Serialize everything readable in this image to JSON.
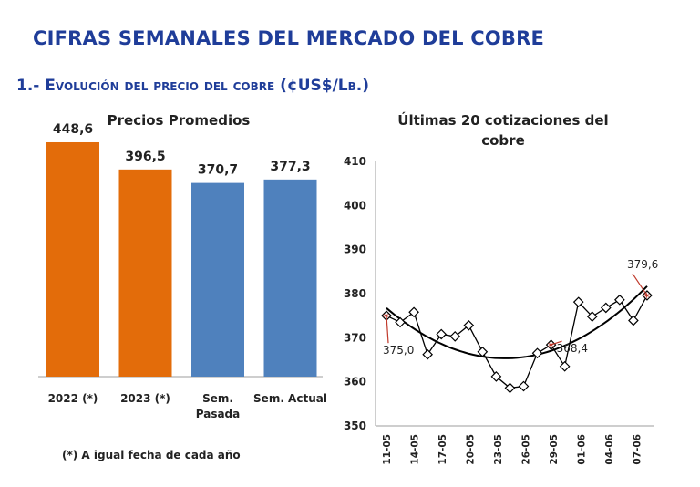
{
  "header": {
    "title": "CIFRAS SEMANALES DEL MERCADO DEL COBRE",
    "section": "1.- Evolución del precio del cobre (¢US$/Lb.)"
  },
  "footnote": "(*) A igual fecha de cada año",
  "colors": {
    "title": "#1f3d99",
    "orange": "#e36c0a",
    "blue": "#4f81bd",
    "line": "#000000",
    "marker_fill": "#ffffff",
    "highlight": "#c0392b"
  },
  "chart_data": [
    {
      "type": "bar",
      "title": "Precios Promedios",
      "categories": [
        "2022 (*)",
        "2023 (*)",
        "Sem. Pasada",
        "Sem. Actual"
      ],
      "category_lines": [
        [
          "2022 (*)"
        ],
        [
          "2023 (*)"
        ],
        [
          "Sem.",
          "Pasada"
        ],
        [
          "Sem. Actual"
        ]
      ],
      "values": [
        448.6,
        396.5,
        370.7,
        377.3
      ],
      "value_labels": [
        "448,6",
        "396,5",
        "370,7",
        "377,3"
      ],
      "bar_colors": [
        "#e36c0a",
        "#e36c0a",
        "#4f81bd",
        "#4f81bd"
      ],
      "ylim": [
        0,
        480
      ],
      "xlabel": "",
      "ylabel": ""
    },
    {
      "type": "line",
      "title": "Últimas 20 cotizaciones del cobre",
      "title_lines": [
        "Últimas 20 cotizaciones del",
        "cobre"
      ],
      "ylim": [
        350,
        410
      ],
      "yticks": [
        350,
        360,
        370,
        380,
        390,
        400,
        410
      ],
      "xtick_labels": [
        "11-05",
        "14-05",
        "17-05",
        "20-05",
        "23-05",
        "26-05",
        "29-05",
        "01-06",
        "04-06",
        "07-06"
      ],
      "series": [
        {
          "values": [
            375.0,
            373.5,
            375.8,
            366.2,
            370.8,
            370.3,
            372.8,
            366.8,
            361.2,
            358.6,
            359.0,
            366.5,
            368.4,
            363.5,
            378.1,
            374.8,
            376.8,
            378.6,
            373.9,
            379.6
          ]
        }
      ],
      "trendline": "polynomial",
      "highlighted_points": [
        {
          "index": 0,
          "label": "375,0"
        },
        {
          "index": 12,
          "label": "368,4"
        },
        {
          "index": 19,
          "label": "379,6"
        }
      ]
    }
  ]
}
